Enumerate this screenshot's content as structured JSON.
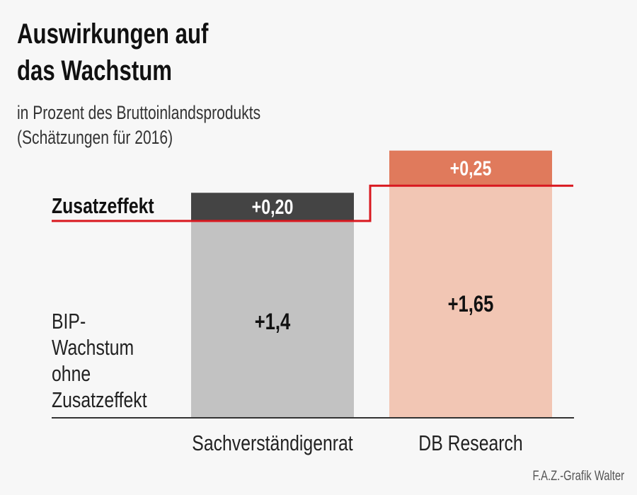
{
  "title_lines": [
    "Auswirkungen auf",
    "das Wachstum"
  ],
  "subtitle_lines": [
    "in Prozent des Bruttoinlandsprodukts",
    "(Schätzungen für 2016)"
  ],
  "source": "F.A.Z.-Grafik Walter",
  "chart_data": {
    "type": "bar",
    "stacked": true,
    "categories": [
      "Sachverständigenrat",
      "DB Research"
    ],
    "series": [
      {
        "name": "BIP-Wachstum ohne Zusatzeffekt",
        "values": [
          1.4,
          1.65
        ],
        "labels": [
          "+1,4",
          "+1,65"
        ],
        "colors": [
          "#c2c2c2",
          "#f2c6b4"
        ]
      },
      {
        "name": "Zusatzeffekt",
        "values": [
          0.2,
          0.25
        ],
        "labels": [
          "+0,20",
          "+0,25"
        ],
        "colors": [
          "#444444",
          "#e07a5c"
        ]
      }
    ],
    "series_labels": {
      "base": [
        "BIP-",
        "Wachstum",
        "ohne",
        "Zusatzeffekt"
      ],
      "top": "Zusatzeffekt"
    },
    "reference_line_color": "#d9181f",
    "ylim": [
      0,
      1.95
    ]
  }
}
